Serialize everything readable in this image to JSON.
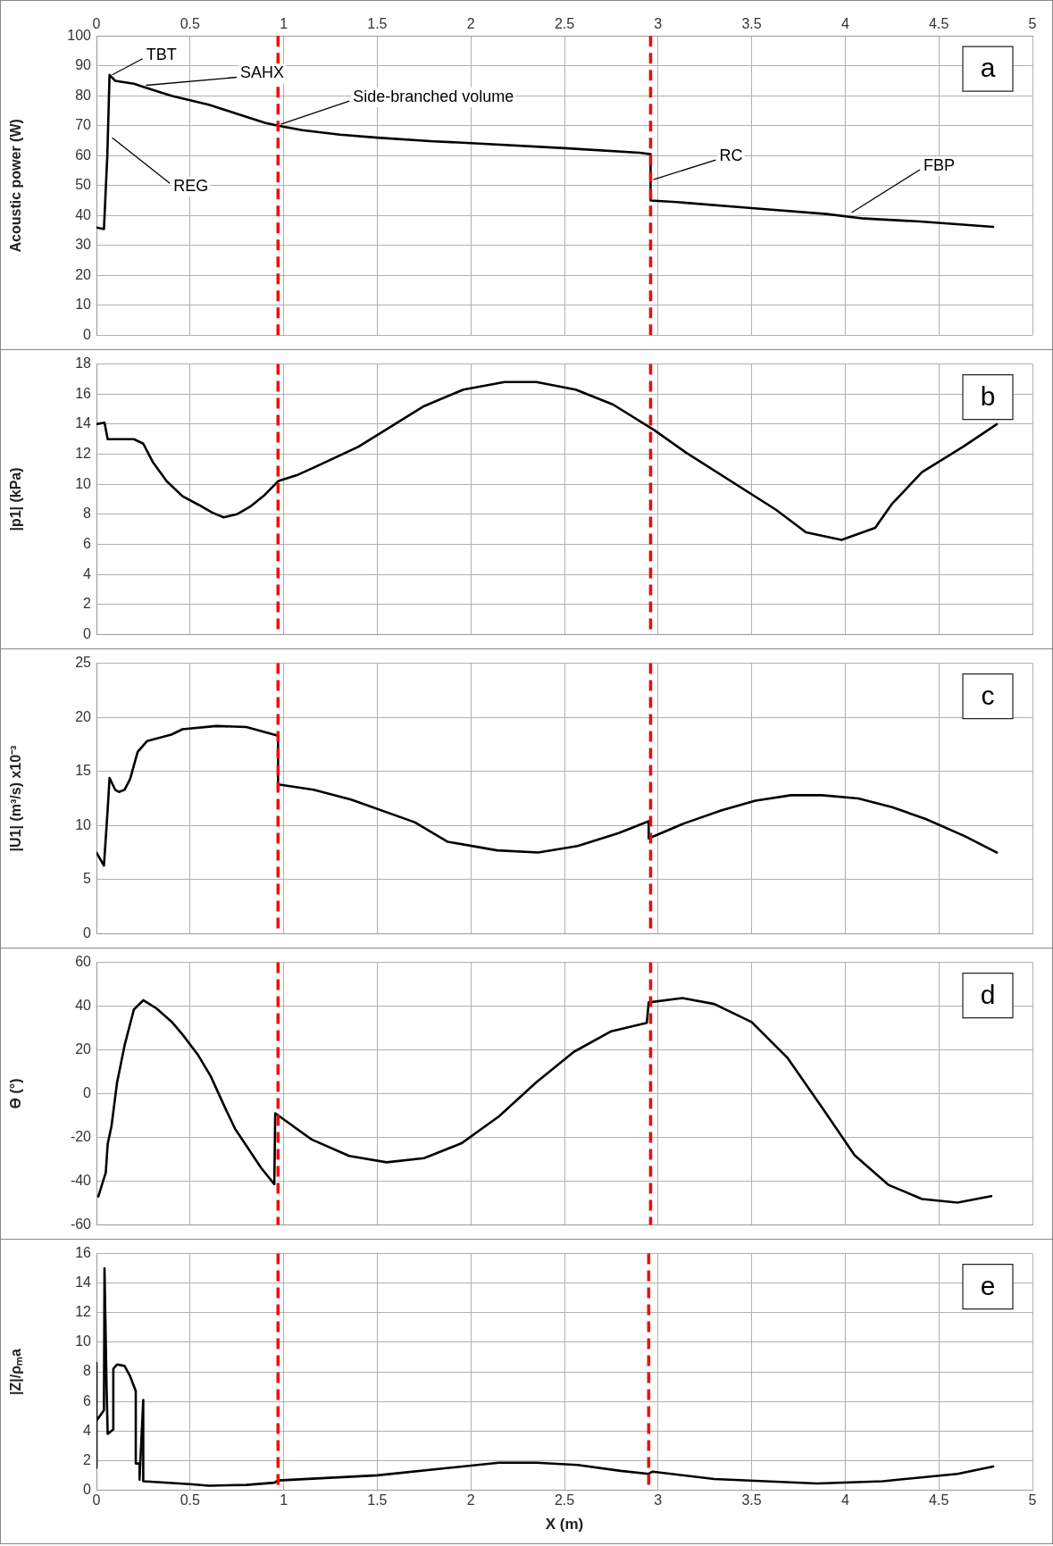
{
  "chart_data": [
    {
      "type": "line",
      "ylabel": "Acoustic power (W)",
      "xlim": [
        0,
        5
      ],
      "xticks": [
        0,
        0.5,
        1,
        1.5,
        2,
        2.5,
        3,
        3.5,
        4,
        4.5,
        5
      ],
      "ylim": [
        0,
        100
      ],
      "yticks": [
        0,
        10,
        20,
        30,
        40,
        50,
        60,
        70,
        80,
        90,
        100
      ],
      "grid": true,
      "series": [
        {
          "color": "#000000",
          "x": [
            0,
            0.04,
            0.058,
            0.07,
            0.1,
            0.2,
            0.25,
            0.4,
            0.5,
            0.6,
            0.7,
            0.8,
            0.9,
            0.97,
            1.1,
            1.3,
            1.5,
            1.8,
            2.0,
            2.5,
            2.9,
            2.96,
            2.96,
            3.1,
            3.5,
            3.9,
            4.1,
            4.4,
            4.79
          ],
          "values": [
            36,
            35.5,
            60,
            87,
            85,
            84,
            83,
            80,
            78.5,
            77,
            75,
            73,
            71,
            70,
            68.5,
            67,
            66,
            64.8,
            64.2,
            62.5,
            61,
            60.5,
            45,
            44.5,
            42.5,
            40.5,
            39,
            38,
            36.2
          ]
        }
      ],
      "ref_lines": [
        {
          "axis": "x",
          "value": 0.97,
          "color": "#ff0000",
          "line_style": "dashed"
        },
        {
          "axis": "x",
          "value": 2.96,
          "color": "#ff0000",
          "line_style": "dashed"
        }
      ],
      "annotations": [
        "a",
        {
          "text": "TBT",
          "x": 0.07,
          "y": 87
        },
        {
          "text": "SAHX",
          "x": 0.25,
          "y": 83.5
        },
        {
          "text": "Side-branched volume",
          "x": 0.97,
          "y": 70.5
        },
        {
          "text": "RC",
          "x": 2.96,
          "y": 52
        },
        {
          "text": "FBP",
          "x": 4.02,
          "y": 41
        },
        {
          "text": "REG",
          "x": 0.07,
          "y": 66
        }
      ]
    },
    {
      "type": "line",
      "ylabel": "|p1| (kPa)",
      "xlim": [
        0,
        5
      ],
      "xticks": [
        0,
        0.5,
        1,
        1.5,
        2,
        2.5,
        3,
        3.5,
        4,
        4.5,
        5
      ],
      "ylim": [
        0,
        18
      ],
      "yticks": [
        0,
        2,
        4,
        6,
        8,
        10,
        12,
        14,
        16,
        18
      ],
      "grid": true,
      "tick_labels": "y",
      "series": [
        {
          "color": "#000000",
          "x": [
            0,
            0.043,
            0.06,
            0.2,
            0.25,
            0.3,
            0.375,
            0.46,
            0.55,
            0.62,
            0.68,
            0.75,
            0.82,
            0.9,
            0.97,
            1.07,
            1.16,
            1.4,
            1.75,
            1.96,
            2.18,
            2.35,
            2.56,
            2.76,
            2.98,
            3.15,
            3.63,
            3.79,
            3.98,
            4.16,
            4.25,
            4.41,
            4.63,
            4.81
          ],
          "values": [
            14,
            14.1,
            13,
            13,
            12.7,
            11.5,
            10.2,
            9.2,
            8.6,
            8.1,
            7.8,
            8,
            8.5,
            9.3,
            10.2,
            10.6,
            11.1,
            12.5,
            15.2,
            16.3,
            16.8,
            16.8,
            16.3,
            15.3,
            13.6,
            12.1,
            8.3,
            6.8,
            6.3,
            7.1,
            8.7,
            10.8,
            12.5,
            14
          ]
        }
      ],
      "ref_lines": [
        {
          "axis": "x",
          "value": 0.97,
          "color": "#ff0000",
          "line_style": "dashed"
        },
        {
          "axis": "x",
          "value": 2.96,
          "color": "#ff0000",
          "line_style": "dashed"
        }
      ],
      "annotations": [
        "b"
      ]
    },
    {
      "type": "line",
      "ylabel": "|U1| (m³/s) x10⁻³",
      "xlim": [
        0,
        5
      ],
      "xticks": [
        0,
        0.5,
        1,
        1.5,
        2,
        2.5,
        3,
        3.5,
        4,
        4.5,
        5
      ],
      "ylim": [
        0,
        25
      ],
      "yticks": [
        0,
        5,
        10,
        15,
        20,
        25
      ],
      "grid": true,
      "tick_labels": "y",
      "series": [
        {
          "color": "#000000",
          "x": [
            0,
            0.04,
            0.06,
            0.07,
            0.1,
            0.12,
            0.15,
            0.18,
            0.22,
            0.27,
            0.4,
            0.46,
            0.64,
            0.8,
            0.97,
            0.97,
            1.16,
            1.36,
            1.7,
            1.875,
            2.14,
            2.36,
            2.57,
            2.79,
            2.95,
            2.95,
            3.14,
            3.34,
            3.52,
            3.71,
            3.875,
            4.07,
            4.25,
            4.43,
            4.64,
            4.81
          ],
          "values": [
            7.5,
            6.3,
            11.5,
            14.4,
            13.3,
            13.1,
            13.3,
            14.3,
            16.8,
            17.8,
            18.4,
            18.9,
            19.2,
            19.1,
            18.3,
            13.8,
            13.3,
            12.4,
            10.3,
            8.5,
            7.7,
            7.5,
            8.1,
            9.3,
            10.4,
            8.8,
            10.2,
            11.4,
            12.3,
            12.8,
            12.8,
            12.5,
            11.7,
            10.6,
            9.0,
            7.5
          ]
        }
      ],
      "ref_lines": [
        {
          "axis": "x",
          "value": 0.97,
          "color": "#ff0000",
          "line_style": "dashed"
        },
        {
          "axis": "x",
          "value": 2.96,
          "color": "#ff0000",
          "line_style": "dashed"
        }
      ],
      "annotations": [
        "c"
      ]
    },
    {
      "type": "line",
      "ylabel": "ϴ (°)",
      "xlim": [
        0,
        5
      ],
      "xticks": [
        0,
        0.5,
        1,
        1.5,
        2,
        2.5,
        3,
        3.5,
        4,
        4.5,
        5
      ],
      "ylim": [
        -60,
        60
      ],
      "yticks": [
        -60,
        -40,
        -20,
        0,
        20,
        40,
        60
      ],
      "grid": true,
      "tick_labels": "y",
      "series": [
        {
          "color": "#000000",
          "x": [
            0.01,
            0.05,
            0.06,
            0.08,
            0.11,
            0.15,
            0.2,
            0.25,
            0.32,
            0.4,
            0.46,
            0.54,
            0.61,
            0.69,
            0.74,
            0.88,
            0.95,
            0.955,
            1.15,
            1.35,
            1.55,
            1.75,
            1.95,
            2.15,
            2.35,
            2.55,
            2.75,
            2.94,
            2.95,
            3.13,
            3.3,
            3.5,
            3.69,
            3.88,
            4.05,
            4.23,
            4.41,
            4.6,
            4.78
          ],
          "values": [
            -47,
            -36,
            -23,
            -15,
            5,
            22,
            38.5,
            42.7,
            39,
            33,
            27,
            18,
            8,
            -7,
            -16,
            -34,
            -41.4,
            -9,
            -21,
            -28.5,
            -31.4,
            -29.5,
            -22.7,
            -10.4,
            5.2,
            19.1,
            28.5,
            32.4,
            41.7,
            43.7,
            41,
            32.7,
            16.5,
            -6.8,
            -28.2,
            -41.7,
            -48.2,
            -49.8,
            -46.9
          ]
        }
      ],
      "ref_lines": [
        {
          "axis": "x",
          "value": 0.97,
          "color": "#ff0000",
          "line_style": "dashed"
        },
        {
          "axis": "x",
          "value": 2.96,
          "color": "#ff0000",
          "line_style": "dashed"
        }
      ],
      "annotations": [
        "d"
      ]
    },
    {
      "type": "line",
      "xlabel": "X (m)",
      "ylabel": "|Z|/ρₘa",
      "xlim": [
        0,
        5
      ],
      "xticks": [
        0,
        0.5,
        1,
        1.5,
        2,
        2.5,
        3,
        3.5,
        4,
        4.5,
        5
      ],
      "ylim": [
        0,
        16
      ],
      "yticks": [
        0,
        2,
        4,
        6,
        8,
        10,
        12,
        14,
        16
      ],
      "grid": true,
      "series": [
        {
          "color": "#000000",
          "x": [
            0,
            0,
            0,
            0.04,
            0.043,
            0.054,
            0.06,
            0.09,
            0.09,
            0.11,
            0.15,
            0.18,
            0.21,
            0.21,
            0.23,
            0.23,
            0.25,
            0.25,
            0.5,
            0.6,
            0.8,
            0.95,
            0.97,
            1.5,
            2.15,
            2.35,
            2.57,
            2.8,
            2.95,
            2.97,
            3.3,
            3.85,
            4.2,
            4.6,
            4.79
          ],
          "values": [
            1.5,
            8.6,
            4.7,
            5.4,
            15,
            7,
            3.8,
            4.1,
            8.2,
            8.5,
            8.4,
            7.7,
            6.7,
            1.8,
            1.8,
            0.7,
            6.1,
            0.6,
            0.4,
            0.3,
            0.35,
            0.5,
            0.65,
            1.0,
            1.85,
            1.85,
            1.7,
            1.3,
            1.1,
            1.25,
            0.75,
            0.45,
            0.6,
            1.1,
            1.6
          ]
        }
      ],
      "ref_lines": [
        {
          "axis": "x",
          "value": 0.97,
          "color": "#ff0000",
          "line_style": "dashed"
        },
        {
          "axis": "x",
          "value": 2.95,
          "color": "#ff0000",
          "line_style": "dashed"
        }
      ],
      "annotations": [
        "e"
      ]
    }
  ]
}
